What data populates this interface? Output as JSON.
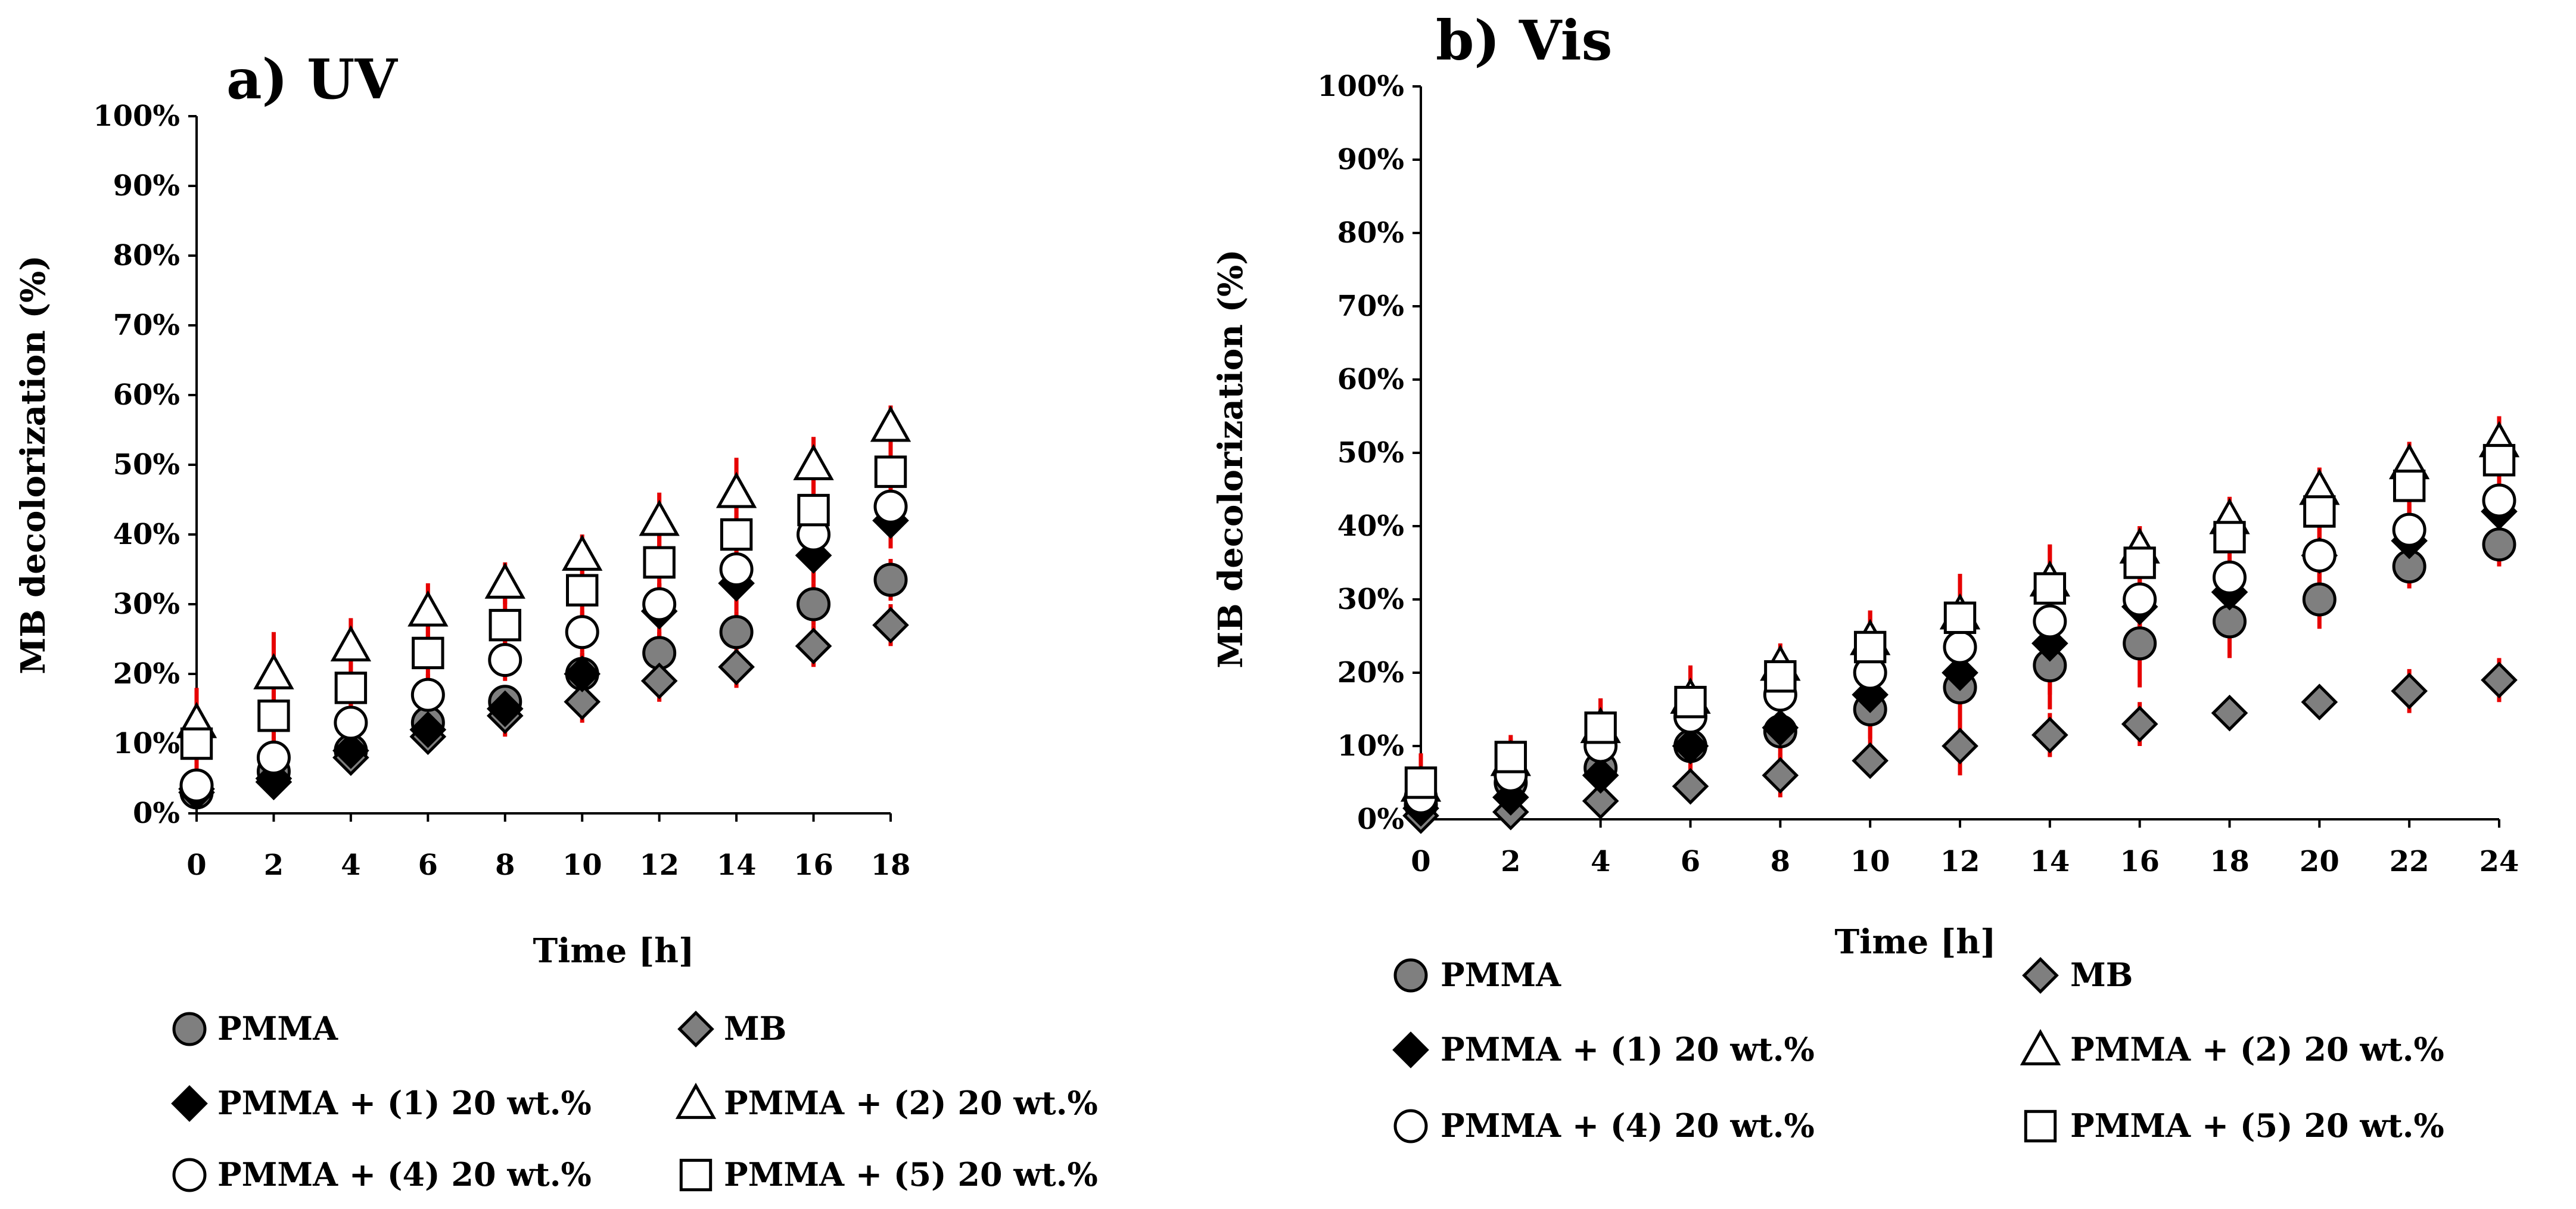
{
  "chart_data": [
    {
      "type": "scatter",
      "panel": "a",
      "title": "a) UV",
      "xlabel": "Time [h]",
      "ylabel": "MB decolorization (%)",
      "xlim": [
        0,
        18
      ],
      "ylim": [
        0,
        100
      ],
      "x": [
        0,
        2,
        4,
        6,
        8,
        10,
        12,
        14,
        16,
        18
      ],
      "x_tick_labels": [
        "0",
        "2",
        "4",
        "6",
        "8",
        "10",
        "12",
        "14",
        "16",
        "18"
      ],
      "y_tick_labels": [
        "0%",
        "10%",
        "20%",
        "30%",
        "40%",
        "50%",
        "60%",
        "70%",
        "80%",
        "90%",
        "100%"
      ],
      "legend_position": "bottom",
      "error_bar_color": "#e60000",
      "series": [
        {
          "name": "PMMA",
          "marker": "circle",
          "fill": "#7f7f7f",
          "values": [
            3,
            6,
            9,
            13,
            16,
            20,
            23,
            26,
            30,
            33.5
          ],
          "errors": [
            2,
            2,
            2,
            2,
            2,
            3,
            3,
            3,
            3,
            3
          ]
        },
        {
          "name": "MB",
          "marker": "diamond",
          "fill": "#7f7f7f",
          "values": [
            3,
            5,
            8,
            11,
            14,
            16,
            19,
            21,
            24,
            27
          ],
          "errors": [
            2,
            2,
            2,
            2,
            3,
            3,
            3,
            3,
            3,
            3
          ]
        },
        {
          "name": "PMMA + (1) 20 wt.%",
          "marker": "diamond",
          "fill": "#000000",
          "values": [
            3.5,
            4.5,
            9,
            12,
            15,
            20,
            29,
            33,
            37,
            42
          ],
          "errors": [
            2,
            2,
            2,
            3,
            3,
            3,
            4,
            4,
            4,
            4
          ]
        },
        {
          "name": "PMMA + (2) 20 wt.%",
          "marker": "triangle",
          "fill": "#ffffff",
          "values": [
            13,
            20,
            24,
            29,
            33,
            37,
            42,
            46,
            50,
            55.5
          ],
          "errors": [
            5,
            6,
            4,
            4,
            3,
            3,
            4,
            5,
            4,
            3
          ]
        },
        {
          "name": "PMMA + (4) 20 wt.%",
          "marker": "circle",
          "fill": "#ffffff",
          "values": [
            4,
            8,
            13,
            17,
            22,
            26,
            30,
            35,
            40,
            44
          ],
          "errors": [
            3,
            3,
            3,
            3,
            3,
            3,
            3,
            3,
            3,
            3
          ]
        },
        {
          "name": "PMMA + (5) 20 wt.%",
          "marker": "square",
          "fill": "#ffffff",
          "values": [
            10,
            14,
            18,
            23,
            27,
            32,
            36,
            40,
            43.5,
            49
          ],
          "errors": [
            5,
            8,
            8,
            5,
            5,
            5,
            6,
            6,
            6,
            6
          ]
        }
      ]
    },
    {
      "type": "scatter",
      "panel": "b",
      "title": "b) Vis",
      "xlabel": "Time [h]",
      "ylabel": "MB decolorization (%)",
      "xlim": [
        0,
        24
      ],
      "ylim": [
        0,
        100
      ],
      "x": [
        0,
        2,
        4,
        6,
        8,
        10,
        12,
        14,
        16,
        18,
        20,
        22,
        24
      ],
      "x_tick_labels": [
        "0",
        "2",
        "4",
        "6",
        "8",
        "10",
        "12",
        "14",
        "16",
        "18",
        "20",
        "22",
        "24"
      ],
      "y_tick_labels": [
        "0%",
        "10%",
        "20%",
        "30%",
        "40%",
        "50%",
        "60%",
        "70%",
        "80%",
        "90%",
        "100%"
      ],
      "legend_position": "bottom",
      "error_bar_color": "#e60000",
      "series": [
        {
          "name": "PMMA",
          "marker": "circle",
          "fill": "#7f7f7f",
          "values": [
            2,
            5,
            7,
            10,
            12,
            15,
            18,
            21,
            24,
            27,
            30,
            34.5,
            37.5
          ],
          "errors": [
            2,
            3,
            3,
            4,
            4,
            5,
            6,
            6,
            6,
            5,
            4,
            3,
            3
          ]
        },
        {
          "name": "MB",
          "marker": "diamond",
          "fill": "#7f7f7f",
          "values": [
            0.5,
            1,
            2.5,
            4.5,
            6,
            8,
            10,
            11.5,
            13,
            14.5,
            16,
            17.5,
            19
          ],
          "errors": [
            1,
            1,
            2,
            2,
            3,
            2,
            4,
            3,
            3,
            1,
            2,
            3,
            3
          ]
        },
        {
          "name": "PMMA + (1) 20 wt.%",
          "marker": "diamond",
          "fill": "#000000",
          "values": [
            1.5,
            3,
            6,
            10,
            12.5,
            17,
            20,
            24,
            29,
            31,
            36,
            38,
            42
          ],
          "errors": [
            2,
            3,
            4,
            5,
            5,
            6,
            7,
            7,
            6,
            6,
            6,
            5,
            5
          ]
        },
        {
          "name": "PMMA + (2) 20 wt.%",
          "marker": "triangle",
          "fill": "#ffffff",
          "values": [
            4.5,
            8,
            12.5,
            16.5,
            21,
            24.5,
            28,
            32.5,
            37,
            41,
            45,
            48.5,
            51.5
          ],
          "errors": [
            3,
            3,
            4,
            4,
            3,
            4,
            5,
            5,
            3,
            3,
            3,
            3,
            3
          ]
        },
        {
          "name": "PMMA + (4) 20 wt.%",
          "marker": "circle",
          "fill": "#ffffff",
          "values": [
            3,
            6,
            10,
            14,
            17,
            20,
            23.5,
            27,
            30,
            33,
            36,
            39.5,
            43.5
          ],
          "errors": [
            3,
            3,
            3,
            3,
            4,
            4,
            4,
            4,
            4,
            4,
            4,
            4,
            4
          ]
        },
        {
          "name": "PMMA + (5) 20 wt.%",
          "marker": "square",
          "fill": "#ffffff",
          "values": [
            5,
            8.5,
            12.5,
            16,
            19.5,
            23.5,
            27.5,
            31.5,
            35,
            38.5,
            42,
            45.5,
            49
          ],
          "errors": [
            4,
            3,
            4,
            5,
            4,
            5,
            6,
            6,
            5,
            5,
            5,
            5,
            6
          ]
        }
      ]
    }
  ]
}
